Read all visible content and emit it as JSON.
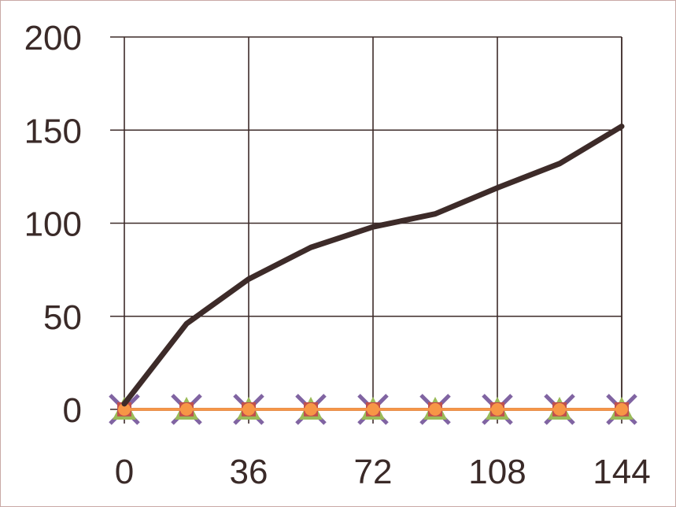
{
  "chart_data": {
    "type": "line",
    "x": [
      0,
      18,
      36,
      54,
      72,
      90,
      108,
      126,
      144
    ],
    "xticks": [
      "0",
      "36",
      "72",
      "108",
      "144"
    ],
    "yticks": [
      "0",
      "50",
      "100",
      "150",
      "200"
    ],
    "xlim": [
      0,
      144
    ],
    "ylim": [
      0,
      200
    ],
    "grid": true,
    "legend": "none",
    "series": [
      {
        "color": "#3d2b29",
        "marker": "none",
        "values": [
          3,
          46,
          70,
          87,
          98,
          105,
          119,
          132,
          152
        ]
      },
      {
        "color": "#8064a2",
        "marker": "x",
        "values": [
          0,
          0,
          0,
          0,
          0,
          0,
          0,
          0,
          0
        ]
      },
      {
        "color": "#9bbb59",
        "marker": "triangle",
        "values": [
          0,
          0,
          0,
          0,
          0,
          0,
          0,
          0,
          0
        ]
      },
      {
        "color": "#c0504d",
        "marker": "square",
        "values": [
          0,
          0,
          0,
          0,
          0,
          0,
          0,
          0,
          0
        ]
      },
      {
        "color": "#f79646",
        "marker": "circle",
        "values": [
          0,
          0,
          0,
          0,
          0,
          0,
          0,
          0,
          0
        ]
      }
    ]
  },
  "colors": {
    "grid": "#3d2b29",
    "text": "#3a2a28",
    "frame": "#c9a9a6"
  }
}
